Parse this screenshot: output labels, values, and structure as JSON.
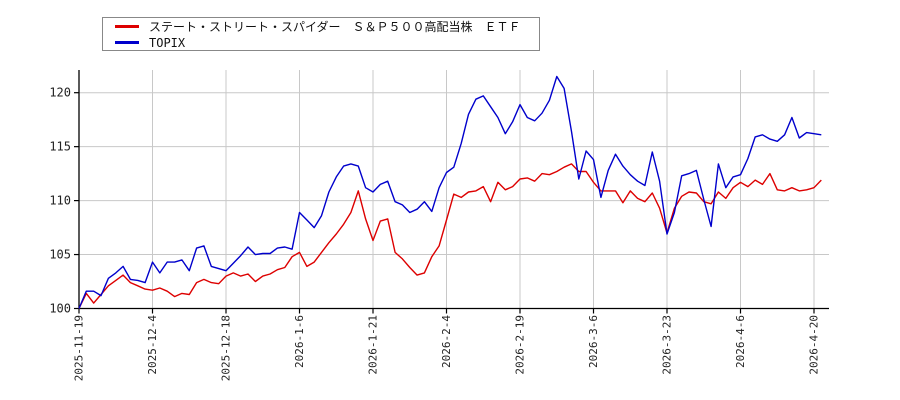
{
  "chart_data": {
    "type": "line",
    "title": "",
    "xlabel": "",
    "ylabel": "",
    "grid": true,
    "legend_position": "top-left",
    "y_ticks": [
      100,
      105,
      110,
      115,
      120
    ],
    "ylim": [
      100,
      122.2
    ],
    "x_tick_indices": [
      0,
      10,
      20,
      30,
      40,
      50,
      60,
      70,
      80,
      90,
      100
    ],
    "x_tick_labels": [
      "2025-11-19",
      "2025-12-4",
      "2025-12-18",
      "2026-1-6",
      "2026-1-21",
      "2026-2-4",
      "2026-2-19",
      "2026-3-6",
      "2026-3-23",
      "2026-4-6",
      "2026-4-20"
    ],
    "series": [
      {
        "name": "ステート・ストリート・スパイダー　Ｓ＆Ｐ５００高配当株　ＥＴＦ",
        "color": "#dd0000",
        "values": [
          100.0,
          101.4,
          100.5,
          101.3,
          102.1,
          102.6,
          103.1,
          102.4,
          102.1,
          101.8,
          101.7,
          101.9,
          101.6,
          101.1,
          101.4,
          101.3,
          102.4,
          102.7,
          102.4,
          102.3,
          103.0,
          103.3,
          103.0,
          103.2,
          102.5,
          103.0,
          103.2,
          103.6,
          103.8,
          104.8,
          105.2,
          103.9,
          104.3,
          105.2,
          106.1,
          106.9,
          107.8,
          108.9,
          110.9,
          108.3,
          106.3,
          108.1,
          108.3,
          105.2,
          104.6,
          103.8,
          103.1,
          103.3,
          104.8,
          105.8,
          108.2,
          110.6,
          110.3,
          110.8,
          110.9,
          111.3,
          109.9,
          111.7,
          111.0,
          111.3,
          112.0,
          112.1,
          111.8,
          112.5,
          112.4,
          112.7,
          113.1,
          113.4,
          112.7,
          112.7,
          111.7,
          110.9,
          110.9,
          110.9,
          109.8,
          110.9,
          110.2,
          109.9,
          110.7,
          109.3,
          107.0,
          109.3,
          110.4,
          110.8,
          110.7,
          109.9,
          109.7,
          110.8,
          110.2,
          111.2,
          111.7,
          111.3,
          111.9,
          111.5,
          112.5,
          111.0,
          110.9,
          111.2,
          110.9,
          111.0,
          111.2,
          111.9
        ]
      },
      {
        "name": "TOPIX",
        "color": "#0000cc",
        "values": [
          100.0,
          101.6,
          101.6,
          101.2,
          102.8,
          103.3,
          103.9,
          102.7,
          102.6,
          102.4,
          104.3,
          103.3,
          104.3,
          104.3,
          104.5,
          103.5,
          105.6,
          105.8,
          103.9,
          103.7,
          103.5,
          104.2,
          104.9,
          105.7,
          105.0,
          105.1,
          105.1,
          105.6,
          105.7,
          105.5,
          108.9,
          108.2,
          107.5,
          108.6,
          110.8,
          112.2,
          113.2,
          113.4,
          113.2,
          111.2,
          110.8,
          111.5,
          111.8,
          109.9,
          109.6,
          108.9,
          109.2,
          109.9,
          109.0,
          111.2,
          112.6,
          113.1,
          115.3,
          118.0,
          119.4,
          119.7,
          118.7,
          117.7,
          116.2,
          117.3,
          118.9,
          117.7,
          117.4,
          118.1,
          119.3,
          121.5,
          120.4,
          116.4,
          112.0,
          114.6,
          113.8,
          110.3,
          112.8,
          114.3,
          113.2,
          112.4,
          111.8,
          111.4,
          114.5,
          111.8,
          106.9,
          108.9,
          112.3,
          112.5,
          112.8,
          110.1,
          107.6,
          113.4,
          111.2,
          112.2,
          112.4,
          113.9,
          115.9,
          116.1,
          115.7,
          115.5,
          116.1,
          117.7,
          115.8,
          116.3,
          116.2,
          116.1
        ]
      }
    ]
  },
  "colors": {
    "grid": "#c8c8c8",
    "axis": "#000000",
    "tick_text": "#222222",
    "legend_border": "#888888"
  }
}
